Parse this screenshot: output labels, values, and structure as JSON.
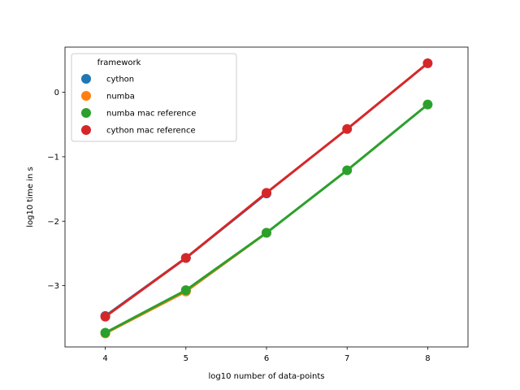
{
  "chart_data": {
    "type": "line",
    "title": "",
    "xlabel": "log10 number of data-points",
    "ylabel": "log10 time in s",
    "x": [
      4,
      5,
      6,
      7,
      8
    ],
    "xlim": [
      3.5,
      8.5
    ],
    "ylim": [
      -3.95,
      0.7
    ],
    "xticks": [
      "4",
      "5",
      "6",
      "7",
      "8"
    ],
    "yticks": [
      0,
      -1,
      -2,
      -3
    ],
    "ytick_labels": [
      "0",
      "−1",
      "−2",
      "−3"
    ],
    "grid": false,
    "legend": {
      "title": "framework",
      "placement": "top-left"
    },
    "series": [
      {
        "name": "cython",
        "color": "#1f77b4",
        "values": [
          -3.47,
          -2.57,
          -1.57,
          null,
          null
        ]
      },
      {
        "name": "numba",
        "color": "#ff7f0e",
        "values": [
          -3.74,
          -3.09,
          -2.18,
          null,
          null
        ]
      },
      {
        "name": "numba mac reference",
        "color": "#2ca02c",
        "values": [
          -3.73,
          -3.07,
          -2.18,
          -1.21,
          -0.19
        ]
      },
      {
        "name": "cython mac reference",
        "color": "#d62728",
        "values": [
          -3.48,
          -2.57,
          -1.56,
          -0.57,
          0.45
        ]
      }
    ]
  }
}
